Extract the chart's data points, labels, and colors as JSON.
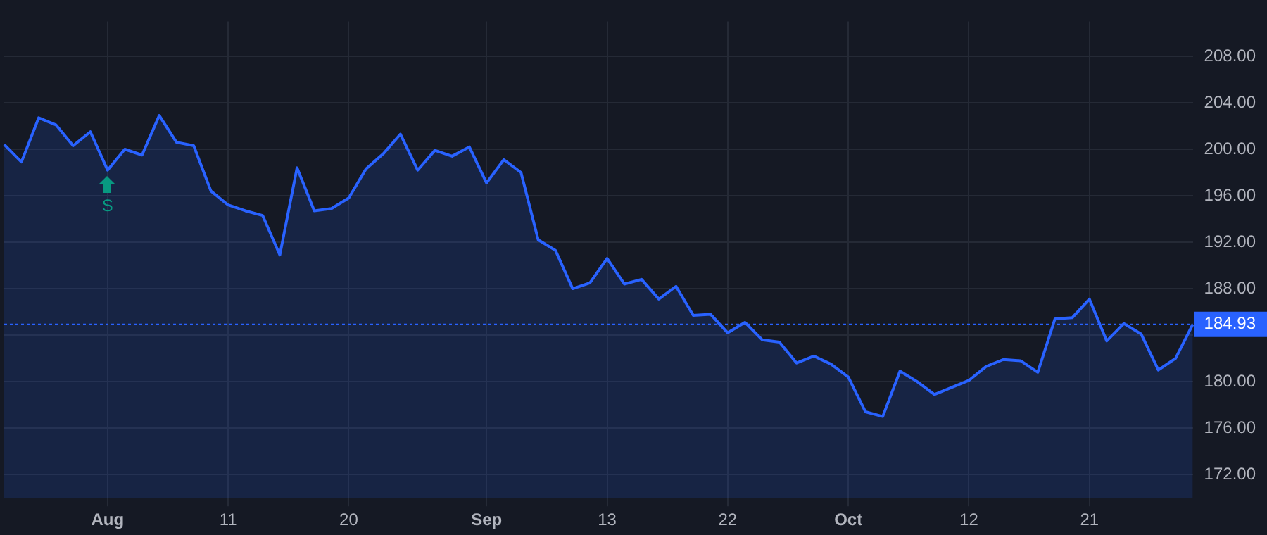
{
  "chart_data": {
    "type": "area",
    "categories": [
      null,
      null,
      null,
      null,
      null,
      null,
      "Aug",
      null,
      null,
      null,
      null,
      null,
      null,
      "11",
      null,
      null,
      null,
      null,
      null,
      null,
      "20",
      null,
      null,
      null,
      null,
      null,
      null,
      null,
      "Sep",
      null,
      null,
      null,
      null,
      null,
      null,
      "13",
      null,
      null,
      null,
      null,
      null,
      null,
      "22",
      null,
      null,
      null,
      null,
      null,
      null,
      "Oct",
      null,
      null,
      null,
      null,
      null,
      null,
      "12",
      null,
      null,
      null,
      null,
      null,
      null,
      "21",
      null,
      null,
      null,
      null,
      null,
      null
    ],
    "series": [
      {
        "color": "#2962ff",
        "values": [
          200.4,
          198.9,
          202.7,
          202.1,
          200.3,
          201.5,
          198.2,
          200.0,
          199.5,
          202.9,
          200.6,
          200.3,
          196.4,
          195.2,
          194.7,
          194.3,
          190.9,
          198.4,
          194.7,
          194.9,
          195.8,
          198.3,
          199.6,
          201.3,
          198.2,
          199.9,
          199.4,
          200.2,
          197.1,
          199.1,
          198.0,
          192.2,
          191.3,
          188.0,
          188.5,
          190.6,
          188.4,
          188.8,
          187.1,
          188.2,
          185.7,
          185.8,
          184.2,
          185.1,
          183.6,
          183.4,
          181.6,
          182.2,
          181.5,
          180.4,
          177.4,
          177.0,
          180.9,
          180.0,
          178.9,
          179.5,
          180.1,
          181.3,
          181.9,
          181.8,
          180.8,
          185.4,
          185.5,
          187.1,
          183.5,
          185.0,
          184.1,
          181.0,
          182.0,
          184.93
        ]
      }
    ],
    "ylim": [
      170,
      211
    ],
    "yticks": [
      {
        "value": 172,
        "label": "172.00"
      },
      {
        "value": 176,
        "label": "176.00"
      },
      {
        "value": 180,
        "label": "180.00"
      },
      {
        "value": 184,
        "label": null
      },
      {
        "value": 188,
        "label": "188.00"
      },
      {
        "value": 192,
        "label": "192.00"
      },
      {
        "value": 196,
        "label": "196.00"
      },
      {
        "value": 200,
        "label": "200.00"
      },
      {
        "value": 204,
        "label": "204.00"
      },
      {
        "value": 208,
        "label": "208.00"
      }
    ],
    "ref_lines": [
      {
        "axis": "y",
        "value": 184.93,
        "label": "184.93",
        "color": "#2962ff",
        "line_style": "dotted"
      }
    ],
    "annotations": [
      {
        "text": "S",
        "x": "Aug",
        "y": 198.2
      }
    ],
    "grid": true,
    "legend": false,
    "marker": "none",
    "line_style": "solid"
  }
}
